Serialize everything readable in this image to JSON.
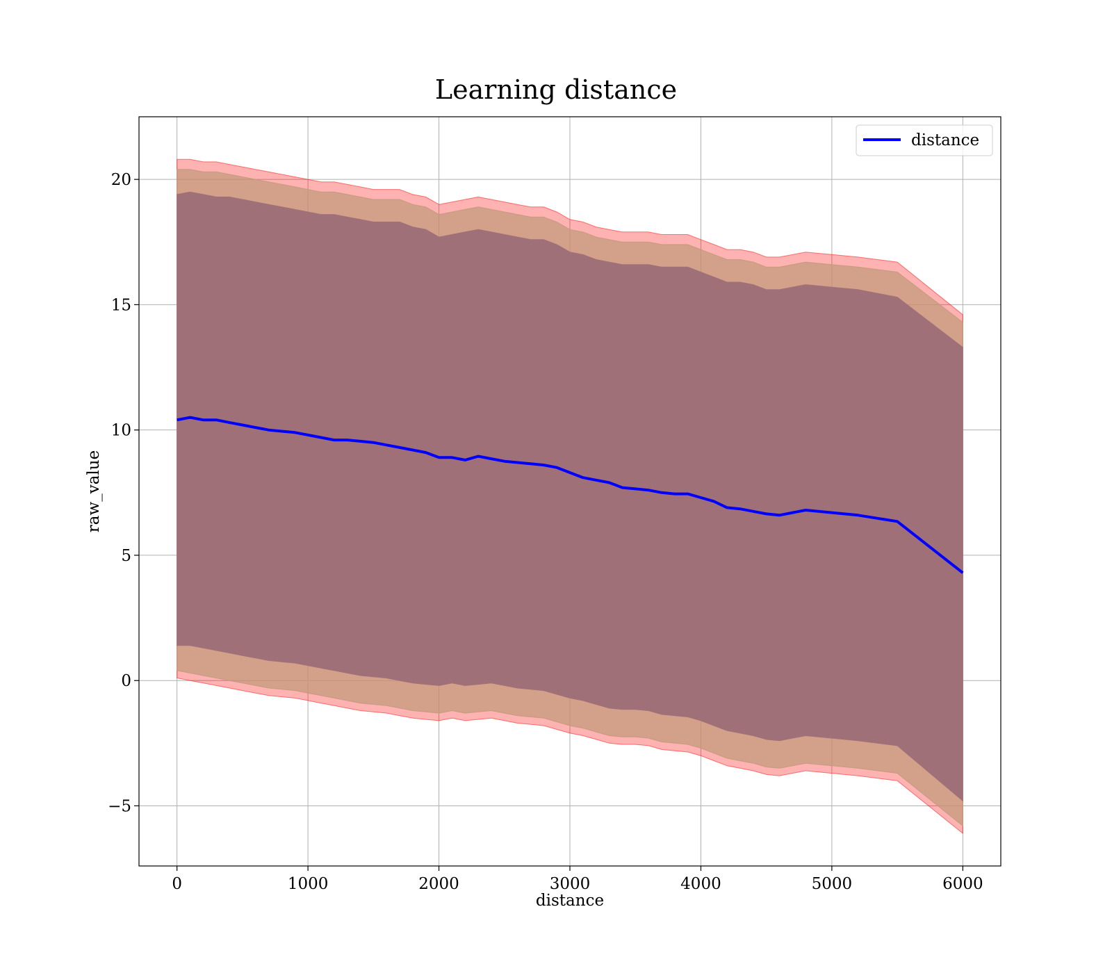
{
  "chart_data": {
    "type": "line",
    "title": "Learning distance",
    "xlabel": "distance",
    "ylabel": "raw_value",
    "xlim": [
      -290,
      6290
    ],
    "ylim": [
      -7.4,
      22.5
    ],
    "xticks": [
      0,
      1000,
      2000,
      3000,
      4000,
      5000,
      6000
    ],
    "xtick_labels": [
      "0",
      "1000",
      "2000",
      "3000",
      "4000",
      "5000",
      "6000"
    ],
    "yticks": [
      -5,
      0,
      5,
      10,
      15,
      20
    ],
    "ytick_labels": [
      "−5",
      "0",
      "5",
      "10",
      "15",
      "20"
    ],
    "grid": true,
    "legend": {
      "location": "top-right",
      "entries": [
        "distance"
      ]
    },
    "series": [
      {
        "name": "distance",
        "color": "#0000ff",
        "x": [
          0,
          100,
          200,
          300,
          400,
          500,
          600,
          700,
          800,
          900,
          1000,
          1100,
          1200,
          1300,
          1400,
          1500,
          1600,
          1700,
          1800,
          1900,
          2000,
          2100,
          2200,
          2300,
          2400,
          2500,
          2600,
          2700,
          2800,
          2900,
          3000,
          3100,
          3200,
          3300,
          3400,
          3500,
          3600,
          3700,
          3800,
          3900,
          4000,
          4100,
          4200,
          4300,
          4400,
          4500,
          4600,
          4800,
          5000,
          5200,
          5500,
          6000
        ],
        "y": [
          10.4,
          10.5,
          10.4,
          10.4,
          10.3,
          10.2,
          10.1,
          10.0,
          9.95,
          9.9,
          9.8,
          9.7,
          9.6,
          9.6,
          9.55,
          9.5,
          9.4,
          9.3,
          9.2,
          9.1,
          8.9,
          8.9,
          8.8,
          8.95,
          8.85,
          8.75,
          8.7,
          8.65,
          8.6,
          8.5,
          8.3,
          8.1,
          8.0,
          7.9,
          7.7,
          7.65,
          7.6,
          7.5,
          7.45,
          7.45,
          7.3,
          7.15,
          6.9,
          6.85,
          6.75,
          6.65,
          6.6,
          6.8,
          6.7,
          6.6,
          6.35,
          4.3
        ]
      }
    ],
    "bands": [
      {
        "name": "outer band",
        "color": "#ff0000",
        "opacity": 0.3,
        "x": [
          0,
          100,
          200,
          300,
          400,
          500,
          600,
          700,
          800,
          900,
          1000,
          1100,
          1200,
          1300,
          1400,
          1500,
          1600,
          1700,
          1800,
          1900,
          2000,
          2100,
          2200,
          2300,
          2400,
          2500,
          2600,
          2700,
          2800,
          2900,
          3000,
          3100,
          3200,
          3300,
          3400,
          3500,
          3600,
          3700,
          3800,
          3900,
          4000,
          4100,
          4200,
          4300,
          4400,
          4500,
          4600,
          4800,
          5000,
          5200,
          5500,
          6000
        ],
        "upper": [
          20.8,
          20.8,
          20.7,
          20.7,
          20.6,
          20.5,
          20.4,
          20.3,
          20.2,
          20.1,
          20.0,
          19.9,
          19.9,
          19.8,
          19.7,
          19.6,
          19.6,
          19.6,
          19.4,
          19.3,
          19.0,
          19.1,
          19.2,
          19.3,
          19.2,
          19.1,
          19.0,
          18.9,
          18.9,
          18.7,
          18.4,
          18.3,
          18.1,
          18.0,
          17.9,
          17.9,
          17.9,
          17.8,
          17.8,
          17.8,
          17.6,
          17.4,
          17.2,
          17.2,
          17.1,
          16.9,
          16.9,
          17.1,
          17.0,
          16.9,
          16.7,
          14.6
        ],
        "lower": [
          0.1,
          0.0,
          -0.1,
          -0.2,
          -0.3,
          -0.4,
          -0.5,
          -0.6,
          -0.65,
          -0.7,
          -0.8,
          -0.9,
          -1.0,
          -1.1,
          -1.2,
          -1.25,
          -1.3,
          -1.4,
          -1.5,
          -1.55,
          -1.6,
          -1.5,
          -1.6,
          -1.55,
          -1.5,
          -1.6,
          -1.7,
          -1.75,
          -1.8,
          -1.95,
          -2.1,
          -2.2,
          -2.35,
          -2.5,
          -2.55,
          -2.55,
          -2.6,
          -2.75,
          -2.8,
          -2.85,
          -3.0,
          -3.2,
          -3.4,
          -3.5,
          -3.6,
          -3.75,
          -3.8,
          -3.6,
          -3.7,
          -3.8,
          -4.0,
          -6.1
        ]
      },
      {
        "name": "middle band",
        "color": "#c49a7c",
        "opacity": 0.75,
        "x": [
          0,
          100,
          200,
          300,
          400,
          500,
          600,
          700,
          800,
          900,
          1000,
          1100,
          1200,
          1300,
          1400,
          1500,
          1600,
          1700,
          1800,
          1900,
          2000,
          2100,
          2200,
          2300,
          2400,
          2500,
          2600,
          2700,
          2800,
          2900,
          3000,
          3100,
          3200,
          3300,
          3400,
          3500,
          3600,
          3700,
          3800,
          3900,
          4000,
          4100,
          4200,
          4300,
          4400,
          4500,
          4600,
          4800,
          5000,
          5200,
          5500,
          6000
        ],
        "upper": [
          20.4,
          20.4,
          20.3,
          20.3,
          20.2,
          20.1,
          20.0,
          19.9,
          19.8,
          19.7,
          19.6,
          19.5,
          19.5,
          19.4,
          19.3,
          19.2,
          19.2,
          19.2,
          19.0,
          18.9,
          18.6,
          18.7,
          18.8,
          18.9,
          18.8,
          18.7,
          18.6,
          18.5,
          18.5,
          18.3,
          18.0,
          17.9,
          17.7,
          17.6,
          17.5,
          17.5,
          17.5,
          17.4,
          17.4,
          17.4,
          17.2,
          17.0,
          16.8,
          16.8,
          16.7,
          16.5,
          16.5,
          16.7,
          16.6,
          16.5,
          16.3,
          14.3
        ],
        "lower": [
          0.4,
          0.3,
          0.2,
          0.1,
          0.0,
          -0.1,
          -0.2,
          -0.3,
          -0.35,
          -0.4,
          -0.5,
          -0.6,
          -0.7,
          -0.8,
          -0.9,
          -0.95,
          -1.0,
          -1.1,
          -1.2,
          -1.25,
          -1.3,
          -1.2,
          -1.3,
          -1.25,
          -1.2,
          -1.3,
          -1.4,
          -1.45,
          -1.5,
          -1.65,
          -1.8,
          -1.9,
          -2.05,
          -2.2,
          -2.25,
          -2.25,
          -2.3,
          -2.45,
          -2.5,
          -2.55,
          -2.7,
          -2.9,
          -3.1,
          -3.2,
          -3.3,
          -3.45,
          -3.5,
          -3.3,
          -3.4,
          -3.5,
          -3.7,
          -5.8
        ]
      },
      {
        "name": "inner band",
        "color": "#a07078",
        "opacity": 1.0,
        "x": [
          0,
          100,
          200,
          300,
          400,
          500,
          600,
          700,
          800,
          900,
          1000,
          1100,
          1200,
          1300,
          1400,
          1500,
          1600,
          1700,
          1800,
          1900,
          2000,
          2100,
          2200,
          2300,
          2400,
          2500,
          2600,
          2700,
          2800,
          2900,
          3000,
          3100,
          3200,
          3300,
          3400,
          3500,
          3600,
          3700,
          3800,
          3900,
          4000,
          4100,
          4200,
          4300,
          4400,
          4500,
          4600,
          4800,
          5000,
          5200,
          5500,
          6000
        ],
        "upper": [
          19.4,
          19.5,
          19.4,
          19.3,
          19.3,
          19.2,
          19.1,
          19.0,
          18.9,
          18.8,
          18.7,
          18.6,
          18.6,
          18.5,
          18.4,
          18.3,
          18.3,
          18.3,
          18.1,
          18.0,
          17.7,
          17.8,
          17.9,
          18.0,
          17.9,
          17.8,
          17.7,
          17.6,
          17.6,
          17.4,
          17.1,
          17.0,
          16.8,
          16.7,
          16.6,
          16.6,
          16.6,
          16.5,
          16.5,
          16.5,
          16.3,
          16.1,
          15.9,
          15.9,
          15.8,
          15.6,
          15.6,
          15.8,
          15.7,
          15.6,
          15.3,
          13.3
        ],
        "lower": [
          1.4,
          1.4,
          1.3,
          1.2,
          1.1,
          1.0,
          0.9,
          0.8,
          0.75,
          0.7,
          0.6,
          0.5,
          0.4,
          0.3,
          0.2,
          0.15,
          0.1,
          0.0,
          -0.1,
          -0.15,
          -0.2,
          -0.1,
          -0.2,
          -0.15,
          -0.1,
          -0.2,
          -0.3,
          -0.35,
          -0.4,
          -0.55,
          -0.7,
          -0.8,
          -0.95,
          -1.1,
          -1.15,
          -1.15,
          -1.2,
          -1.35,
          -1.4,
          -1.45,
          -1.6,
          -1.8,
          -2.0,
          -2.1,
          -2.2,
          -2.35,
          -2.4,
          -2.2,
          -2.3,
          -2.4,
          -2.6,
          -4.8
        ]
      }
    ]
  }
}
